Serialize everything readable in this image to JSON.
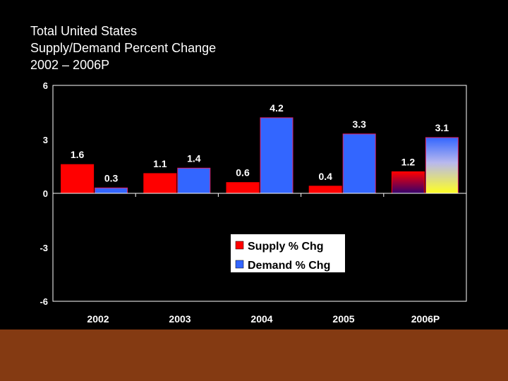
{
  "slide": {
    "title_lines": [
      "Total United States",
      "Supply/Demand Percent Change",
      "2002 – 2006P"
    ],
    "footer_color": "#843a12"
  },
  "chart_data": {
    "type": "bar",
    "title": "Total United States Supply/Demand Percent Change 2002 – 2006P",
    "categories": [
      "2002",
      "2003",
      "2004",
      "2005",
      "2006P"
    ],
    "series": [
      {
        "name": "Supply % Chg",
        "values": [
          1.6,
          1.1,
          0.6,
          0.4,
          1.2
        ],
        "color": "#ff0000"
      },
      {
        "name": "Demand % Chg",
        "values": [
          0.3,
          1.4,
          4.2,
          3.3,
          3.1
        ],
        "color": "#3366ff"
      }
    ],
    "labels": {
      "supply": [
        "1.6",
        "1.1",
        "0.6",
        "0.4",
        "1.2"
      ],
      "demand": [
        "0.3",
        "1.4",
        "4.2",
        "3.3",
        "3.1"
      ]
    },
    "y_ticks": [
      "6",
      "3",
      "0",
      "-3",
      "-6"
    ],
    "ylim": [
      -6,
      6
    ],
    "xlabel": "",
    "ylabel": "",
    "legend_position": "bottom-center",
    "plot_background": "#000000"
  }
}
